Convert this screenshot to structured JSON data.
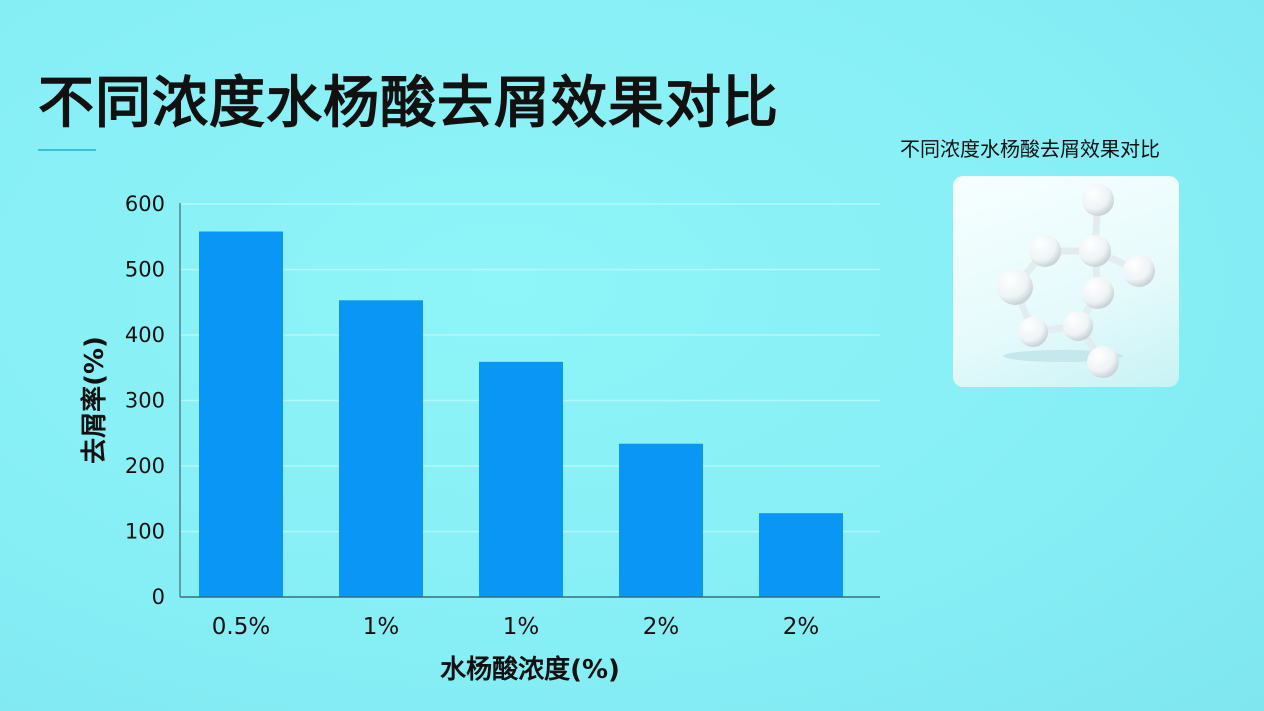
{
  "header": {
    "title": "不同浓度水杨酸去屑效果对比"
  },
  "side_panel": {
    "title": "不同浓度水杨酸去屑效果对比",
    "image_icon": "molecule-model-icon"
  },
  "chart_data": {
    "type": "bar",
    "title": "",
    "xlabel": "水杨酸浓度(%)",
    "ylabel": "去屑率(%)",
    "categories": [
      "0.5%",
      "1%",
      "1%",
      "2%",
      "2%"
    ],
    "values": [
      558,
      453,
      359,
      234,
      128
    ],
    "ylim": [
      0,
      600
    ],
    "yticks": [
      0,
      100,
      200,
      300,
      400,
      500,
      600
    ],
    "grid": true,
    "legend": "none",
    "bar_color": "#0a96f5"
  }
}
